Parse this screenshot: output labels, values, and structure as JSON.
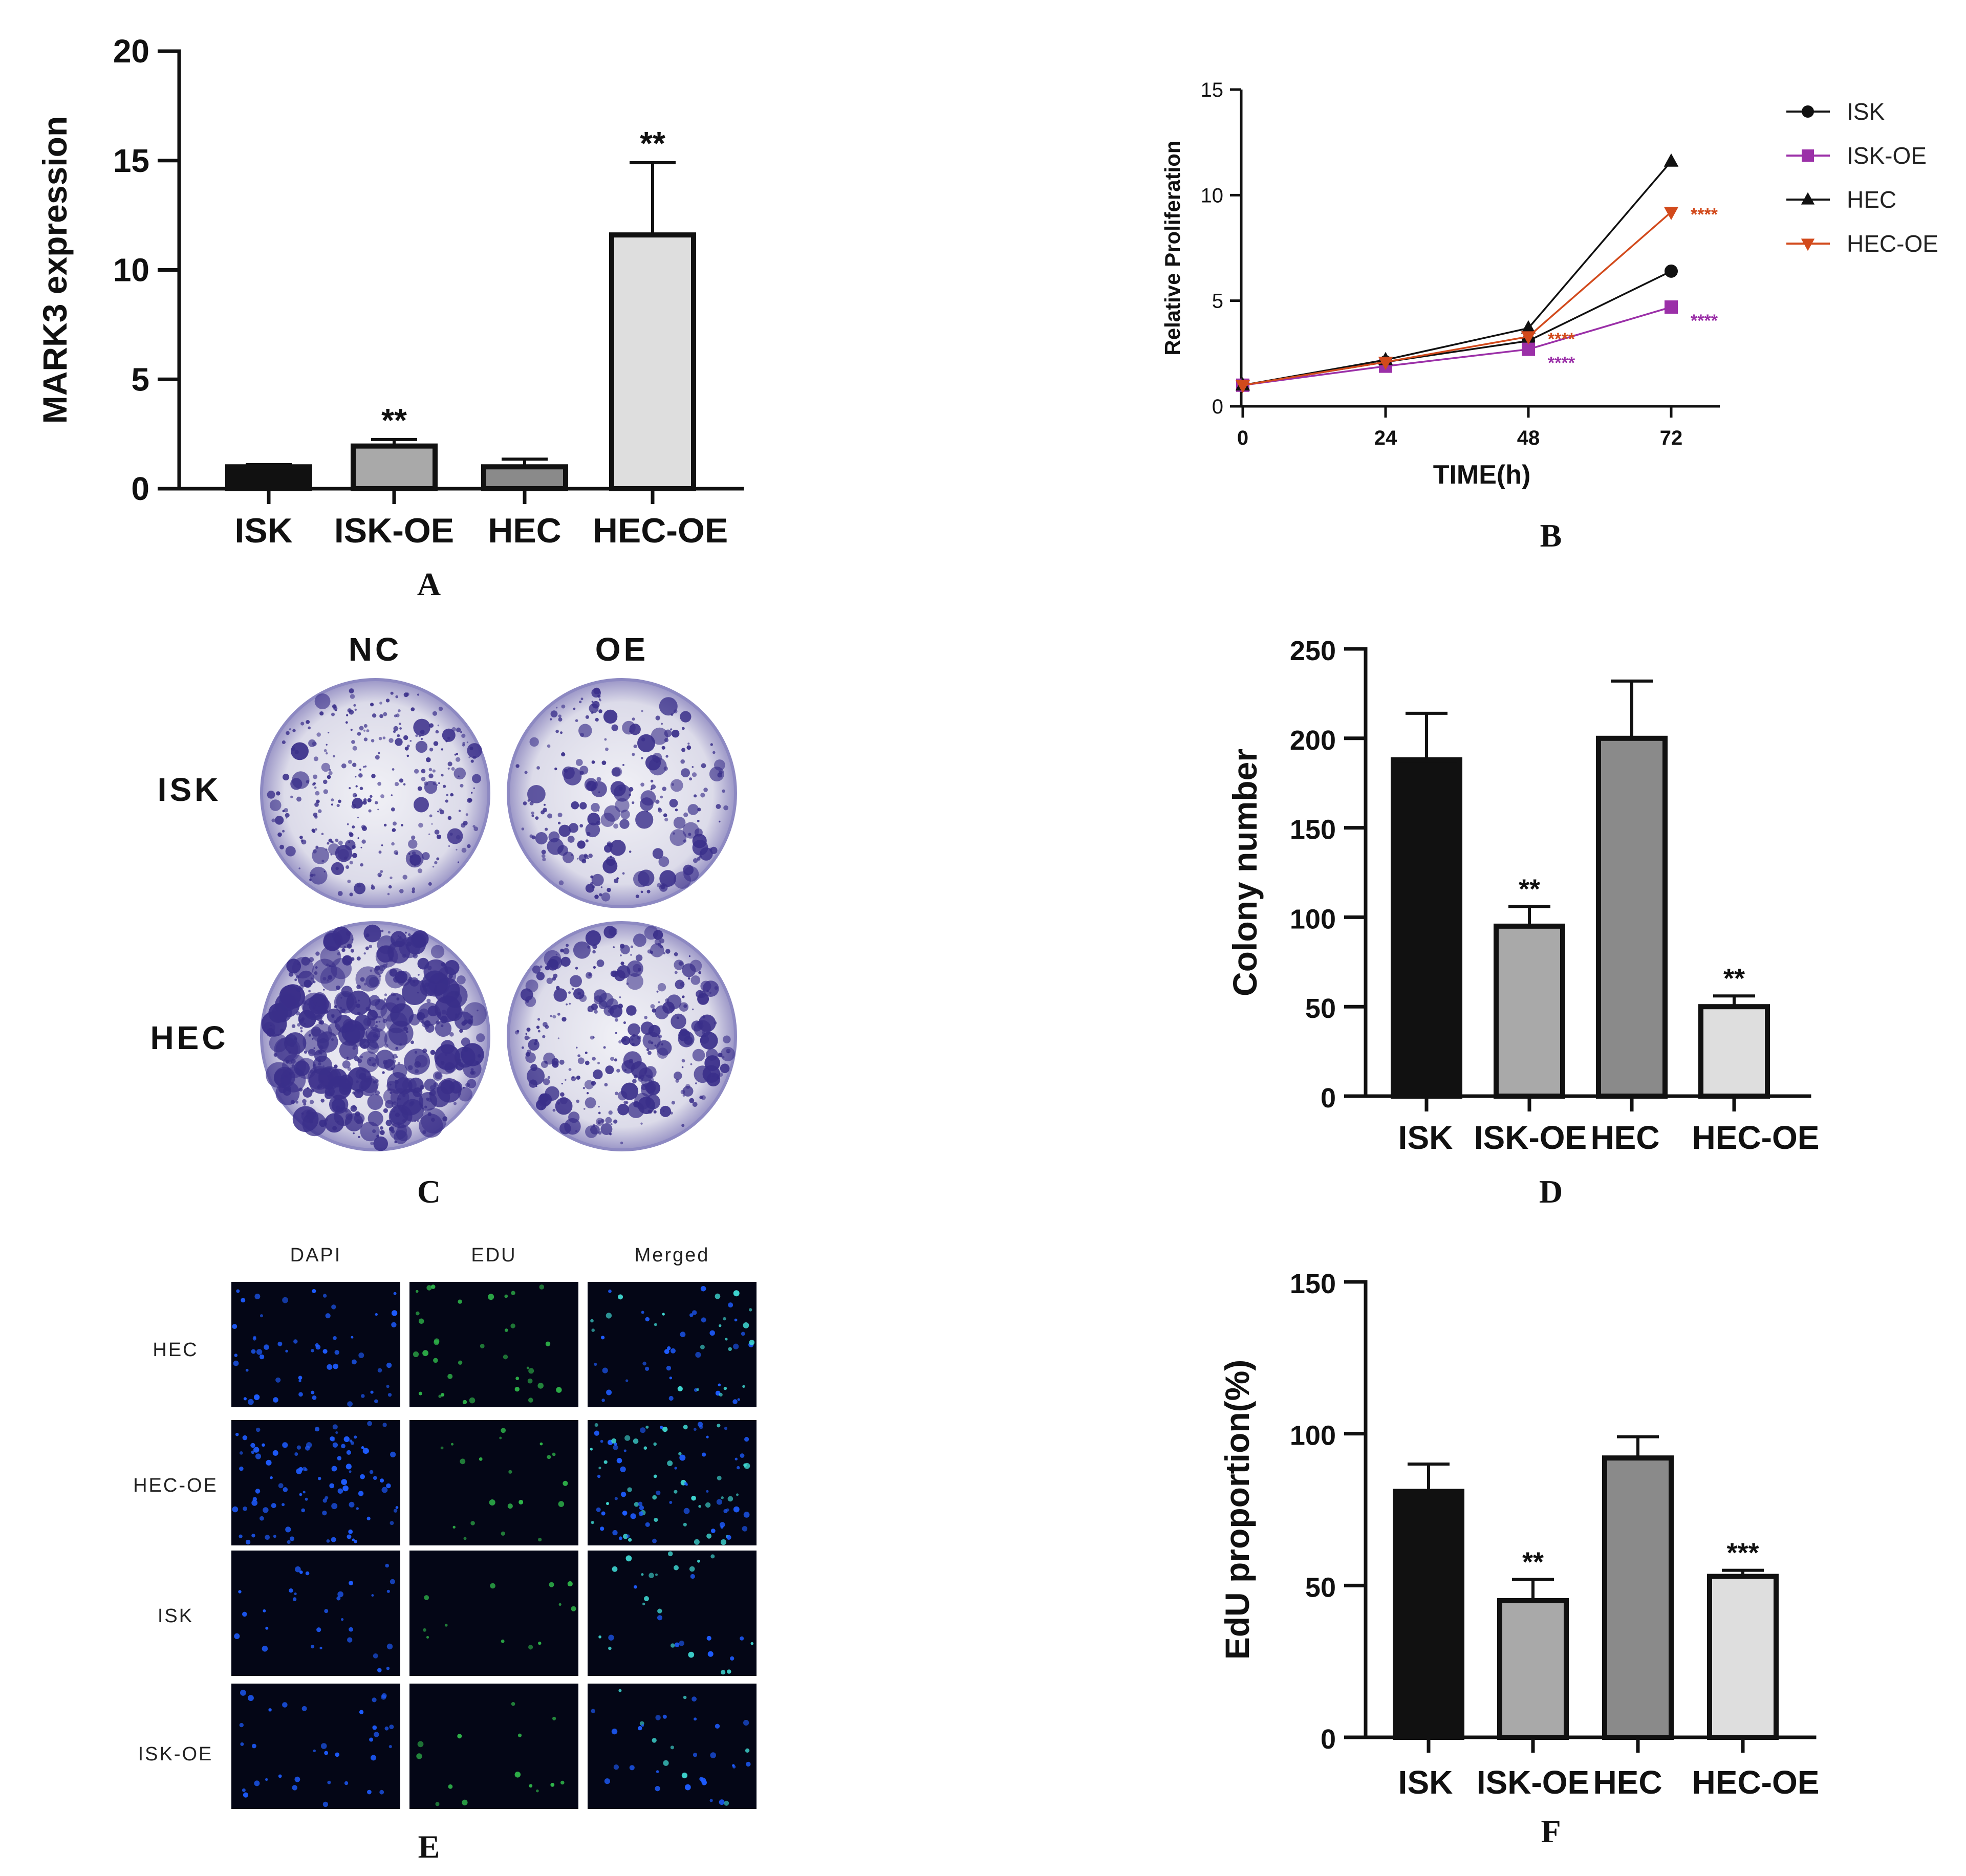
{
  "colors": {
    "black": "#111111",
    "gray_dark": "#8a8a8a",
    "gray_mid": "#a9a9a9",
    "gray_light": "#dedede",
    "purple": "#9b30a8",
    "orange": "#d24a1c",
    "plate_stain": "#3a2f8a",
    "dapi": "#1e5cff",
    "edu": "#2fb54a"
  },
  "panels": {
    "a": "A",
    "b": "B",
    "c": "C",
    "d": "D",
    "e": "E",
    "f": "F"
  },
  "chart_data": [
    {
      "panel": "A",
      "type": "bar",
      "categories": [
        "ISK",
        "ISK-OE",
        "HEC",
        "HEC-OE"
      ],
      "values": [
        1.0,
        1.95,
        1.0,
        11.6
      ],
      "errors": [
        0.1,
        0.3,
        0.35,
        3.3
      ],
      "significance": [
        "",
        "**",
        "",
        "**"
      ],
      "ylabel": "MARK3 expression",
      "ylim": [
        0,
        20
      ],
      "yticks": [
        "0",
        "5",
        "10",
        "15",
        "20"
      ],
      "bar_colors": [
        "#111111",
        "#a9a9a9",
        "#8a8a8a",
        "#dedede"
      ]
    },
    {
      "panel": "B",
      "type": "line",
      "x": [
        0,
        24,
        48,
        72
      ],
      "xticks": [
        "0",
        "24",
        "48",
        "72"
      ],
      "yticks": [
        "0",
        "5",
        "10",
        "15"
      ],
      "xlabel": "TIME(h)",
      "ylabel": "Relative Proliferation",
      "ylim": [
        0,
        15
      ],
      "series": [
        {
          "name": "ISK",
          "values": [
            1.0,
            2.1,
            3.1,
            6.4
          ],
          "color": "#111111",
          "marker": "circle"
        },
        {
          "name": "ISK-OE",
          "values": [
            1.0,
            1.9,
            2.7,
            4.7
          ],
          "color": "#9b30a8",
          "marker": "square"
        },
        {
          "name": "HEC",
          "values": [
            1.0,
            2.2,
            3.7,
            11.6
          ],
          "color": "#111111",
          "marker": "triangle-up"
        },
        {
          "name": "HEC-OE",
          "values": [
            1.0,
            2.1,
            3.3,
            9.2
          ],
          "color": "#d24a1c",
          "marker": "triangle-down"
        }
      ],
      "annotations": [
        {
          "text": "****",
          "series": "HEC-OE",
          "x": 48,
          "color": "#d24a1c"
        },
        {
          "text": "****",
          "series": "ISK-OE",
          "x": 48,
          "color": "#9b30a8"
        },
        {
          "text": "****",
          "series": "HEC-OE",
          "x": 72,
          "color": "#d24a1c"
        },
        {
          "text": "****",
          "series": "ISK-OE",
          "x": 72,
          "color": "#9b30a8"
        }
      ]
    },
    {
      "panel": "D",
      "type": "bar",
      "categories": [
        "ISK",
        "ISK-OE",
        "HEC",
        "HEC-OE"
      ],
      "values": [
        188,
        95,
        200,
        50
      ],
      "errors": [
        26,
        11,
        32,
        6
      ],
      "significance": [
        "",
        "**",
        "",
        "**"
      ],
      "ylabel": "Colony  number",
      "ylim": [
        0,
        250
      ],
      "yticks": [
        "0",
        "50",
        "100",
        "150",
        "200",
        "250"
      ],
      "bar_colors": [
        "#111111",
        "#a9a9a9",
        "#8a8a8a",
        "#dedede"
      ]
    },
    {
      "panel": "F",
      "type": "bar",
      "categories": [
        "ISK",
        "ISK-OE",
        "HEC",
        "HEC-OE"
      ],
      "values": [
        81,
        45,
        92,
        53
      ],
      "errors": [
        9,
        7,
        7,
        2
      ],
      "significance": [
        "",
        "**",
        "",
        "***"
      ],
      "ylabel": "EdU proportion(%)",
      "ylim": [
        0,
        150
      ],
      "yticks": [
        "0",
        "50",
        "100",
        "150"
      ],
      "bar_colors": [
        "#111111",
        "#a9a9a9",
        "#8a8a8a",
        "#dedede"
      ]
    }
  ],
  "colony": {
    "columns": [
      "NC",
      "OE"
    ],
    "rows": [
      "ISK",
      "HEC"
    ]
  },
  "edu_images": {
    "columns": [
      "DAPI",
      "EDU",
      "Merged"
    ],
    "rows": [
      "HEC",
      "HEC-OE",
      "ISK",
      "ISK-OE"
    ]
  }
}
